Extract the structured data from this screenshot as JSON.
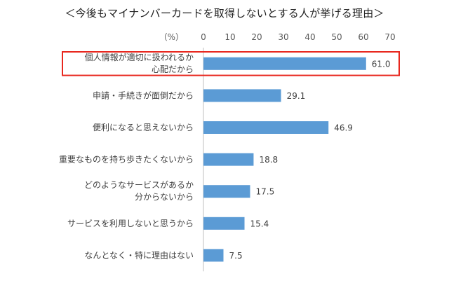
{
  "chart_data": {
    "type": "bar",
    "orientation": "horizontal",
    "title": "＜今後もマイナンバーカードを取得しないとする人が挙げる理由＞",
    "unit_label": "（%）",
    "xlim": [
      0,
      70
    ],
    "xticks": [
      0,
      10,
      20,
      30,
      40,
      50,
      60,
      70
    ],
    "categories": [
      [
        "個人情報が適切に扱われるか",
        "心配だから"
      ],
      [
        "申請・手続きが面倒だから"
      ],
      [
        "便利になると思えないから"
      ],
      [
        "重要なものを持ち歩きたくないから"
      ],
      [
        "どのようなサービスがあるか",
        "分からないから"
      ],
      [
        "サービスを利用しないと思うから"
      ],
      [
        "なんとなく・特に理由はない"
      ]
    ],
    "values": [
      61.0,
      29.1,
      46.9,
      18.8,
      17.5,
      15.4,
      7.5
    ],
    "value_labels": [
      "61.0",
      "29.1",
      "46.9",
      "18.8",
      "17.5",
      "15.4",
      "7.5"
    ],
    "highlighted_index": 0,
    "colors": {
      "bar": "#5b9bd5",
      "highlight_box": "#e8271e",
      "axis": "#bfbfbf"
    },
    "grid": false
  }
}
